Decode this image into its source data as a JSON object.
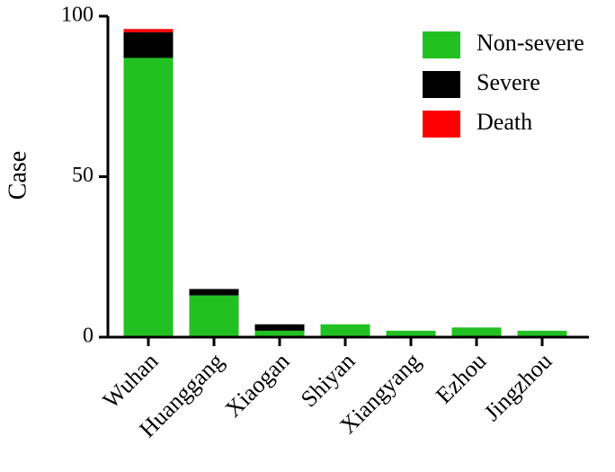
{
  "chart_data": {
    "type": "stacked_bar",
    "y_label": "Case",
    "categories": [
      "Wuhan",
      "Huanggang",
      "Xiaogan",
      "Shiyan",
      "Xiangyang",
      "Ezhou",
      "Jingzhou"
    ],
    "series": [
      {
        "name": "Non-severe",
        "color": "#22c122",
        "values": [
          87,
          13,
          2,
          4,
          2,
          3,
          2
        ]
      },
      {
        "name": "Severe",
        "color": "#000000",
        "values": [
          8,
          2,
          2,
          0,
          0,
          0,
          0
        ]
      },
      {
        "name": "Death",
        "color": "#ff0000",
        "values": [
          1,
          0,
          0,
          0,
          0,
          0,
          0
        ]
      }
    ],
    "ylim": [
      0,
      100
    ],
    "yticks": [
      0,
      50,
      100
    ]
  }
}
